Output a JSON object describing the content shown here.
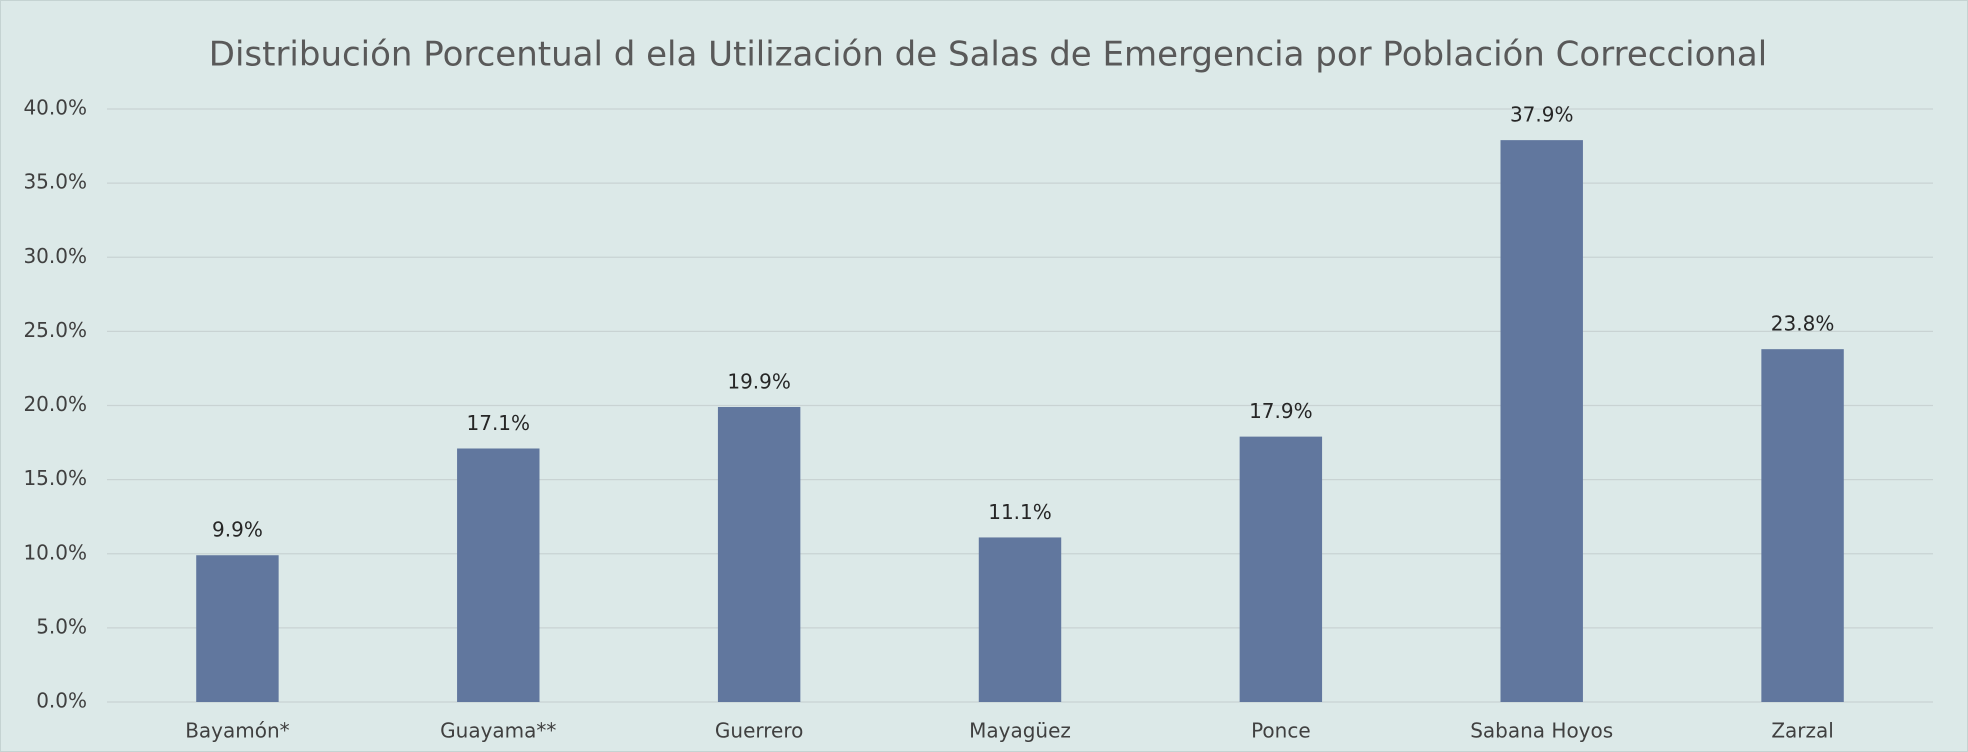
{
  "chart_data": {
    "type": "bar",
    "title": "Distribución Porcentual d ela Utilización de Salas de Emergencia por Población Correccional",
    "categories": [
      "Bayamón*",
      "Guayama**",
      "Guerrero",
      "Mayagüez",
      "Ponce",
      "Sabana Hoyos",
      "Zarzal"
    ],
    "values": [
      9.9,
      17.1,
      19.9,
      11.1,
      17.9,
      37.9,
      23.8
    ],
    "value_labels": [
      "9.9%",
      "17.1%",
      "19.9%",
      "11.1%",
      "17.9%",
      "37.9%",
      "23.8%"
    ],
    "color": "#61779e",
    "ylim": [
      0,
      40
    ],
    "yticks": [
      {
        "value": 0,
        "label": "0.0%"
      },
      {
        "value": 5,
        "label": "5.0%"
      },
      {
        "value": 10,
        "label": "10.0%"
      },
      {
        "value": 15,
        "label": "15.0%"
      },
      {
        "value": 20,
        "label": "20.0%"
      },
      {
        "value": 25,
        "label": "25.0%"
      },
      {
        "value": 30,
        "label": "30.0%"
      },
      {
        "value": 35,
        "label": "35.0%"
      },
      {
        "value": 40,
        "label": "40.0%"
      }
    ],
    "grid": true
  }
}
